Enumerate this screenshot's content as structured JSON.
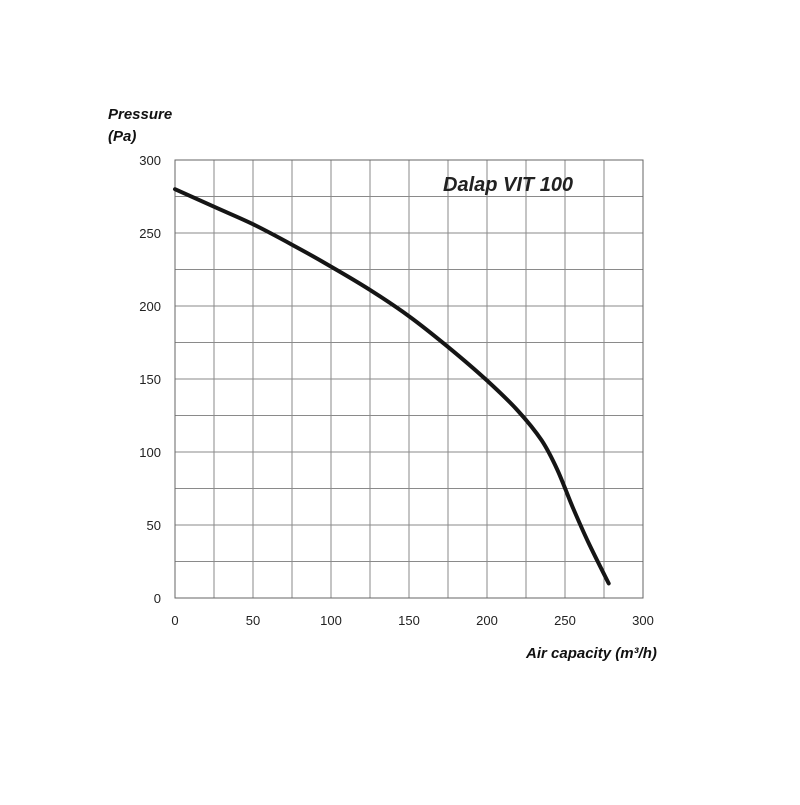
{
  "chart_data": {
    "type": "line",
    "title": "Dalap VIT 100",
    "ylabel_line1": "Pressure",
    "ylabel_line2": "(Pa)",
    "xlabel": "Air capacity (m³/h)",
    "xlim": [
      0,
      300
    ],
    "ylim": [
      0,
      300
    ],
    "x_ticks": [
      0,
      50,
      100,
      150,
      200,
      250,
      300
    ],
    "y_ticks": [
      0,
      50,
      100,
      150,
      200,
      250,
      300
    ],
    "x_minor_step": 25,
    "y_minor_step": 25,
    "grid": true,
    "series": [
      {
        "x": [
          0,
          25,
          50,
          75,
          100,
          125,
          150,
          175,
          200,
          220,
          235,
          245,
          255,
          265,
          278
        ],
        "y": [
          280,
          268,
          256,
          242,
          227,
          211,
          193,
          172,
          149,
          128,
          108,
          88,
          62,
          38,
          10
        ]
      }
    ],
    "colors": {
      "curve": "#151515",
      "grid": "#8a8a8a",
      "text": "#222222"
    }
  }
}
